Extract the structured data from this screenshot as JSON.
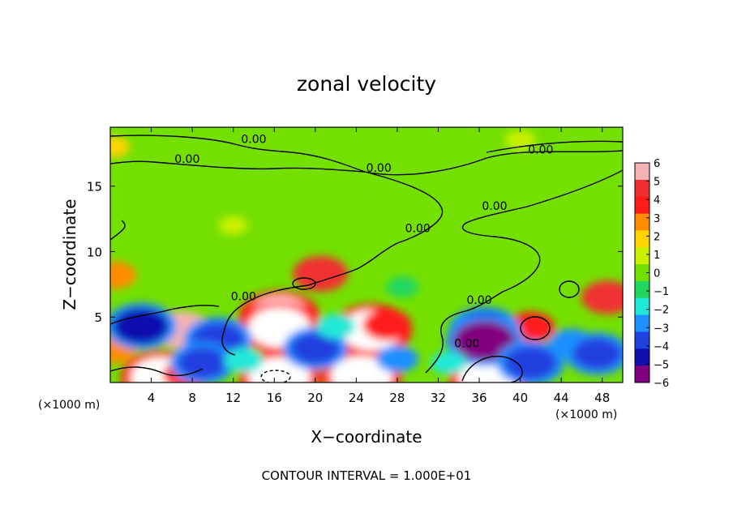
{
  "chart_data": {
    "type": "heatmap",
    "title": "zonal velocity",
    "xlabel": "X−coordinate",
    "ylabel": "Z−coordinate",
    "x_unit_label": "(×1000 m)",
    "x_unit_label_right": "(×1000 m)",
    "footer": "CONTOUR INTERVAL = 1.000E+01",
    "xlim": [
      0,
      50
    ],
    "ylim": [
      0,
      19.5
    ],
    "x_ticks": [
      4,
      8,
      12,
      16,
      20,
      24,
      28,
      32,
      36,
      40,
      44,
      48
    ],
    "y_ticks": [
      5,
      10,
      15
    ],
    "colorbar": {
      "range": [
        -6,
        6
      ],
      "tick_values": [
        6,
        5,
        4,
        3,
        2,
        1,
        0,
        -1,
        -2,
        -3,
        -4,
        -5,
        -6
      ],
      "tick_labels": [
        "6",
        "5",
        "4",
        "3",
        "2",
        "1",
        "0",
        "−1",
        "−2",
        "−3",
        "−4",
        "−5",
        "−6"
      ],
      "colors": [
        "#f4b4b4",
        "#f03030",
        "#ff1a1a",
        "#ff8c00",
        "#ffd400",
        "#c8f000",
        "#70e000",
        "#20d860",
        "#20e8d8",
        "#1e90ff",
        "#2040e0",
        "#1010b0",
        "#800080"
      ]
    },
    "contours": [
      {
        "level": 0,
        "label": "0.00",
        "label_x": 7.5,
        "label_y": 17.1
      },
      {
        "level": 0,
        "label": "0.00",
        "label_x": 14.0,
        "label_y": 18.6
      },
      {
        "level": 0,
        "label": "0.00",
        "label_x": 26.2,
        "label_y": 16.4
      },
      {
        "level": 0,
        "label": "0.00",
        "label_x": 42.0,
        "label_y": 17.8
      },
      {
        "level": 0,
        "label": "0.00",
        "label_x": 37.5,
        "label_y": 13.5
      },
      {
        "level": 0,
        "label": "0.00",
        "label_x": 30.0,
        "label_y": 11.8
      },
      {
        "level": 0,
        "label": "0.00",
        "label_x": 13.0,
        "label_y": 6.6
      },
      {
        "level": 0,
        "label": "0.00",
        "label_x": 36.0,
        "label_y": 6.3
      },
      {
        "level": 0,
        "label": "0.00",
        "label_x": 34.8,
        "label_y": 3.0
      }
    ],
    "features": [
      {
        "x": 7.0,
        "z": 4.0,
        "value": 5.5
      },
      {
        "x": 16.5,
        "z": 5.0,
        "value": 6
      },
      {
        "x": 16.5,
        "z": 4.2,
        "value": 6
      },
      {
        "x": 25.5,
        "z": 4.0,
        "value": 6
      },
      {
        "x": 27.0,
        "z": 4.4,
        "value": 4
      },
      {
        "x": 5.0,
        "z": 0.4,
        "value": 6
      },
      {
        "x": 16.5,
        "z": 0.4,
        "value": 6
      },
      {
        "x": 24.5,
        "z": 0.5,
        "value": 6
      },
      {
        "x": 37.0,
        "z": 0.3,
        "value": 6
      },
      {
        "x": 20.5,
        "z": 8.3,
        "value": 5
      },
      {
        "x": 41.0,
        "z": 4.2,
        "value": 4
      },
      {
        "x": 48.5,
        "z": 6.5,
        "value": 4.5
      },
      {
        "x": 0.5,
        "z": 8.2,
        "value": 3
      },
      {
        "x": 0.5,
        "z": 2.5,
        "value": 3
      },
      {
        "x": 7.5,
        "z": 0.6,
        "value": 4
      },
      {
        "x": 3.0,
        "z": 4.3,
        "value": -5
      },
      {
        "x": 10.5,
        "z": 3.3,
        "value": -4.5
      },
      {
        "x": 9.0,
        "z": 1.5,
        "value": -4
      },
      {
        "x": 13.0,
        "z": 1.7,
        "value": -2.5
      },
      {
        "x": 20.0,
        "z": 2.6,
        "value": -4
      },
      {
        "x": 22.0,
        "z": 4.3,
        "value": -2.5
      },
      {
        "x": 28.0,
        "z": 1.8,
        "value": -3
      },
      {
        "x": 36.5,
        "z": 4.0,
        "value": -5
      },
      {
        "x": 36.5,
        "z": 3.2,
        "value": -6
      },
      {
        "x": 41.0,
        "z": 1.5,
        "value": -4.5
      },
      {
        "x": 45.0,
        "z": 3.0,
        "value": -3.5
      },
      {
        "x": 47.5,
        "z": 2.2,
        "value": -4
      },
      {
        "x": 33.0,
        "z": 1.5,
        "value": -2
      },
      {
        "x": 28.5,
        "z": 7.3,
        "value": -1.5
      },
      {
        "x": 0.3,
        "z": 18.0,
        "value": 1.5
      },
      {
        "x": 12.0,
        "z": 12.0,
        "value": 1
      },
      {
        "x": 40.0,
        "z": 18.5,
        "value": 1.3
      },
      {
        "x": 25.0,
        "z": 14.5,
        "value": 0.3
      },
      {
        "x": 45.0,
        "z": 11.0,
        "value": -0.4
      },
      {
        "x": 35.0,
        "z": 9.0,
        "value": -0.5
      }
    ]
  }
}
